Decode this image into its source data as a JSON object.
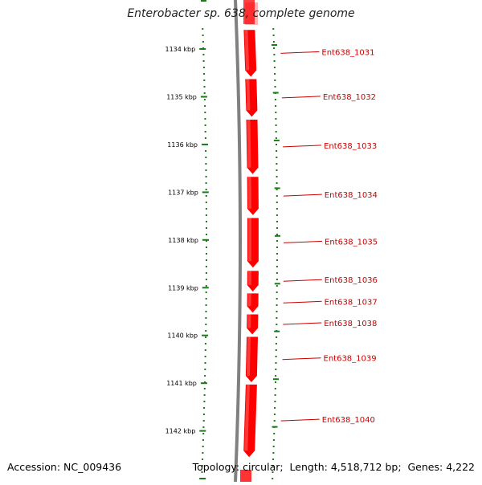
{
  "genome": {
    "title": "Enterobacter sp. 638, complete genome",
    "accession_label": "Accession:",
    "accession": "NC_009436",
    "topology_label": "Topology:",
    "topology": "circular",
    "length_label": "Length:",
    "length": "4,518,712 bp",
    "genes_label": "Genes:",
    "genes": "4,222"
  },
  "colors": {
    "gene_fill": "#ff0000",
    "gene_label": "#cc0000",
    "tick_mark": "#1a7a1a",
    "backbone": "#808080"
  },
  "scale": {
    "unit": "kbp",
    "ticks": [
      "1134 kbp",
      "1135 kbp",
      "1136 kbp",
      "1137 kbp",
      "1138 kbp",
      "1139 kbp",
      "1140 kbp",
      "1141 kbp",
      "1142 kbp"
    ]
  },
  "genes": [
    {
      "name": "Ent638_1031",
      "start_kbp": 1133.6,
      "end_kbp": 1134.58,
      "strand": "-"
    },
    {
      "name": "Ent638_1032",
      "start_kbp": 1134.63,
      "end_kbp": 1135.42,
      "strand": "-"
    },
    {
      "name": "Ent638_1033",
      "start_kbp": 1135.48,
      "end_kbp": 1136.62,
      "strand": "-"
    },
    {
      "name": "Ent638_1034",
      "start_kbp": 1136.68,
      "end_kbp": 1137.48,
      "strand": "-"
    },
    {
      "name": "Ent638_1035",
      "start_kbp": 1137.54,
      "end_kbp": 1138.58,
      "strand": "-"
    },
    {
      "name": "Ent638_1036",
      "start_kbp": 1138.65,
      "end_kbp": 1139.08,
      "strand": "-"
    },
    {
      "name": "Ent638_1037",
      "start_kbp": 1139.12,
      "end_kbp": 1139.52,
      "strand": "-"
    },
    {
      "name": "Ent638_1038",
      "start_kbp": 1139.56,
      "end_kbp": 1139.98,
      "strand": "-"
    },
    {
      "name": "Ent638_1039",
      "start_kbp": 1140.03,
      "end_kbp": 1140.98,
      "strand": "-"
    },
    {
      "name": "Ent638_1040",
      "start_kbp": 1141.03,
      "end_kbp": 1142.55,
      "strand": "-"
    }
  ]
}
